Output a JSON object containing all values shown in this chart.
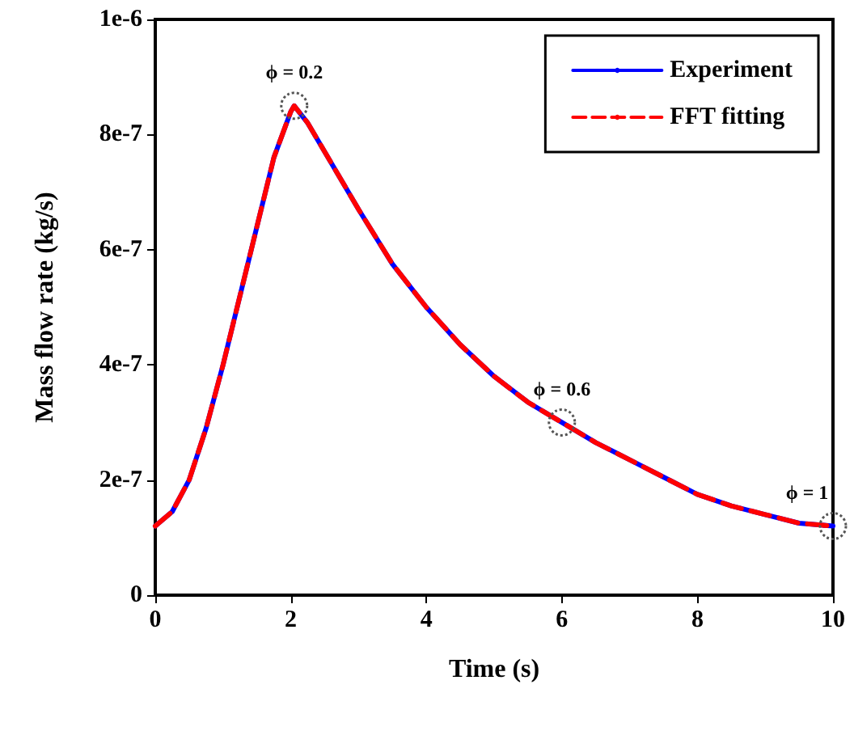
{
  "chart_data": {
    "type": "line",
    "xlabel": "Time (s)",
    "ylabel": "Mass flow rate (kg/s)",
    "x": [
      0,
      0.25,
      0.5,
      0.75,
      1.0,
      1.25,
      1.5,
      1.75,
      2.0,
      2.05,
      2.25,
      2.5,
      3,
      3.5,
      4,
      4.5,
      5,
      5.5,
      6,
      6.5,
      7,
      7.5,
      8,
      8.5,
      9,
      9.5,
      10
    ],
    "series": [
      {
        "name": "Experiment",
        "color": "#0000ff",
        "line_style": "solid",
        "values": [
          1.2e-07,
          1.45e-07,
          2e-07,
          2.9e-07,
          4e-07,
          5.2e-07,
          6.4e-07,
          7.6e-07,
          8.4e-07,
          8.5e-07,
          8.2e-07,
          7.7e-07,
          6.7e-07,
          5.75e-07,
          5e-07,
          4.35e-07,
          3.8e-07,
          3.35e-07,
          3e-07,
          2.65e-07,
          2.35e-07,
          2.05e-07,
          1.75e-07,
          1.55e-07,
          1.4e-07,
          1.25e-07,
          1.2e-07
        ]
      },
      {
        "name": "FFT fitting",
        "color": "#ff0000",
        "line_style": "dashed",
        "values": [
          1.2e-07,
          1.45e-07,
          2e-07,
          2.9e-07,
          4e-07,
          5.2e-07,
          6.4e-07,
          7.6e-07,
          8.4e-07,
          8.5e-07,
          8.2e-07,
          7.7e-07,
          6.7e-07,
          5.75e-07,
          5e-07,
          4.35e-07,
          3.8e-07,
          3.35e-07,
          3e-07,
          2.65e-07,
          2.35e-07,
          2.05e-07,
          1.75e-07,
          1.55e-07,
          1.4e-07,
          1.25e-07,
          1.2e-07
        ]
      }
    ],
    "xlim": [
      0,
      10
    ],
    "xticks": [
      0,
      2,
      4,
      6,
      8,
      10
    ],
    "ylim": [
      0,
      1e-06
    ],
    "yticks": [
      {
        "value": 0,
        "label": "0"
      },
      {
        "value": 2e-07,
        "label": "2e-7"
      },
      {
        "value": 4e-07,
        "label": "4e-7"
      },
      {
        "value": 6e-07,
        "label": "6e-7"
      },
      {
        "value": 8e-07,
        "label": "8e-7"
      },
      {
        "value": 1e-06,
        "label": "1e-6"
      }
    ],
    "annotations": [
      {
        "text": "ϕ = 0.2",
        "x": 2.05,
        "y": 8.5e-07
      },
      {
        "text": "ϕ = 0.6",
        "x": 6,
        "y": 3e-07
      },
      {
        "text": "ϕ = 1",
        "x": 10,
        "y": 1.2e-07
      }
    ],
    "grid": false,
    "legend": "top right",
    "marker": "none"
  }
}
